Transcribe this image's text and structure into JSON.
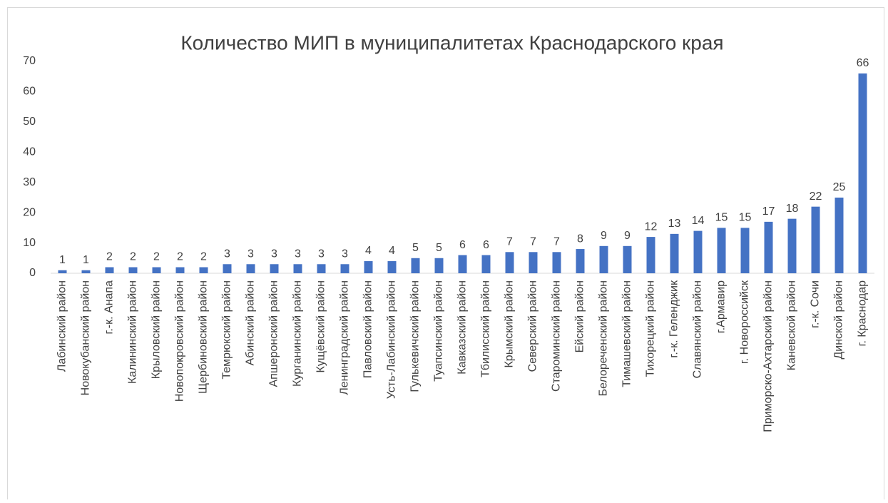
{
  "chart_data": {
    "type": "bar",
    "title": "Количество МИП в муниципалитетах Краснодарского края",
    "categories": [
      "Лабинский район",
      "Новокубанский район",
      "г.-к. Анапа",
      "Калининский район",
      "Крыловский район",
      "Новопокровский район",
      "Щербиновский район",
      "Темрюкский район",
      "Абинский район",
      "Апшеронский район",
      "Курганинский район",
      "Кущёвский район",
      "Ленинградский район",
      "Павловский район",
      "Усть-Лабинский район",
      "Гулькевичский район",
      "Туапсинский район",
      "Кавказский район",
      "Тбилисский район",
      "Крымский район",
      "Северский район",
      "Староминский район",
      "Ейский район",
      "Белореченский район",
      "Тимашевский район",
      "Тихорецкий район",
      "г.-к. Геленджик",
      "Славянский район",
      "г.Армавир",
      "г. Новороссийск",
      "Приморско-Ахтарский район",
      "Каневской район",
      "г.-к. Сочи",
      "Динской район",
      "г. Краснодар"
    ],
    "values": [
      1,
      1,
      2,
      2,
      2,
      2,
      2,
      3,
      3,
      3,
      3,
      3,
      3,
      4,
      4,
      5,
      5,
      6,
      6,
      7,
      7,
      7,
      8,
      9,
      9,
      12,
      13,
      14,
      15,
      15,
      17,
      18,
      22,
      25,
      66
    ],
    "color": "#4472c4",
    "ylim": [
      0,
      70
    ],
    "yticks": [
      0,
      10,
      20,
      30,
      40,
      50,
      60,
      70
    ],
    "grid": false
  }
}
